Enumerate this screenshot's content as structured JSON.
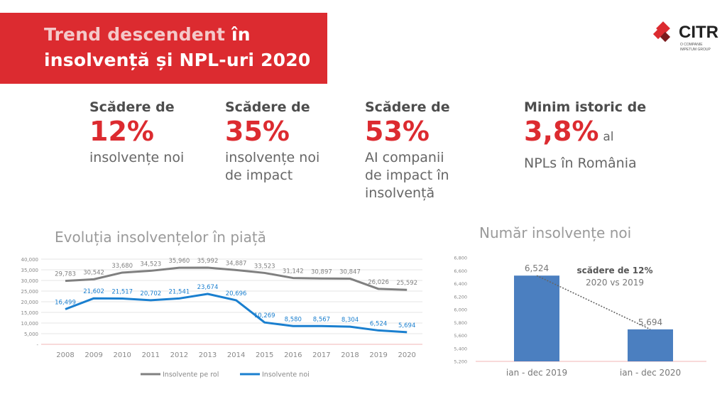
{
  "title": {
    "line1_part1": "Trend descendent",
    "line1_part2": "în",
    "line2": "insolvență și NPL-uri 2020"
  },
  "logo": {
    "name": "CITR",
    "sub1": "O COMPANIE",
    "sub2": "IMPETUM GROUP",
    "icon": "red-diamond-icon"
  },
  "stats": [
    {
      "head": "Scădere de",
      "value": "12%",
      "suffix": "",
      "desc": [
        "insolvențe noi"
      ]
    },
    {
      "head": "Scădere de",
      "value": "35%",
      "suffix": "",
      "desc": [
        "insolvențe noi",
        "de impact"
      ]
    },
    {
      "head": "Scădere de",
      "value": "53%",
      "suffix": "",
      "desc": [
        "AI companii",
        "de impact în",
        "insolvență"
      ]
    },
    {
      "head": "Minim istoric de",
      "value": "3,8%",
      "suffix": "al",
      "desc": [
        "NPLs în România"
      ]
    }
  ],
  "colors": {
    "accent": "#dc2b30",
    "series_gray": "#808080",
    "series_blue": "#1a7fcf",
    "bar_blue": "#4b7fc0"
  },
  "chart_data": [
    {
      "type": "line",
      "title": "Evoluția insolvențelor în piață",
      "x": [
        "2008",
        "2009",
        "2010",
        "2011",
        "2012",
        "2013",
        "2014",
        "2015",
        "2016",
        "2017",
        "2018",
        "2019",
        "2020"
      ],
      "series": [
        {
          "name": "Insolvente pe rol",
          "values": [
            29783,
            30542,
            33680,
            34523,
            35960,
            35992,
            34887,
            33523,
            31142,
            30897,
            30847,
            26026,
            25592
          ],
          "labels": [
            "29,783",
            "30,542",
            "33,680",
            "34,523",
            "35,960",
            "35,992",
            "34,887",
            "33,523",
            "31,142",
            "30,897",
            "30,847",
            "26,026",
            "25,592"
          ]
        },
        {
          "name": "Insolvente noi",
          "values": [
            16499,
            21602,
            21517,
            20702,
            21541,
            23674,
            20696,
            10269,
            8580,
            8567,
            8304,
            6524,
            5694
          ],
          "labels": [
            "16,499",
            "21,602",
            "21,517",
            "20,702",
            "21,541",
            "23,674",
            "20,696",
            "10,269",
            "8,580",
            "8,567",
            "8,304",
            "6,524",
            "5,694"
          ]
        }
      ],
      "yticks": [
        "40,000",
        "35,000",
        "30,000",
        "25,000",
        "20,000",
        "15,000",
        "10,000",
        "5,000",
        "-"
      ],
      "ylim": [
        0,
        40000
      ],
      "grid": true,
      "legend": "bottom"
    },
    {
      "type": "bar",
      "title": "Număr insolvențe noi",
      "categories": [
        "ian - dec 2019",
        "ian - dec 2020"
      ],
      "values": [
        6524,
        5694
      ],
      "labels": [
        "6,524",
        "5,694"
      ],
      "yticks": [
        "6,800",
        "6,600",
        "6,400",
        "6,200",
        "6,000",
        "5,800",
        "5,600",
        "5,400",
        "5,200"
      ],
      "ylim": [
        5200,
        6800
      ],
      "annotation_line1": "scădere de 12%",
      "annotation_line2": "2020 vs 2019",
      "grid": false
    }
  ]
}
